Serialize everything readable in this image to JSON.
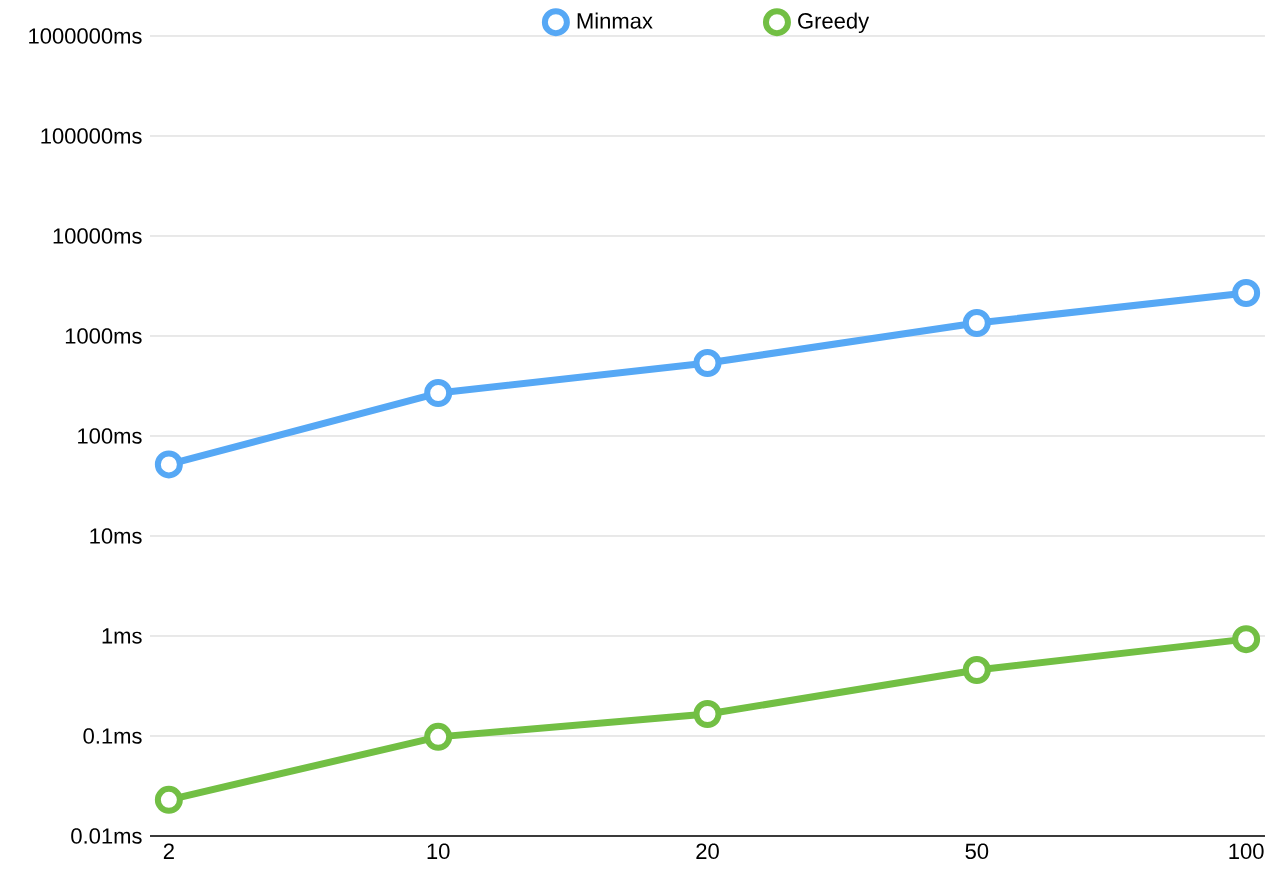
{
  "chart_data": {
    "type": "line",
    "categories": [
      "2",
      "10",
      "20",
      "50",
      "100"
    ],
    "log": "y",
    "ylim": [
      0.01,
      1000000
    ],
    "yticks": [
      {
        "value": 0.01,
        "label": "0.01ms"
      },
      {
        "value": 0.1,
        "label": "0.1ms"
      },
      {
        "value": 1,
        "label": "1ms"
      },
      {
        "value": 10,
        "label": "10ms"
      },
      {
        "value": 100,
        "label": "100ms"
      },
      {
        "value": 1000,
        "label": "1000ms"
      },
      {
        "value": 10000,
        "label": "10000ms"
      },
      {
        "value": 100000,
        "label": "100000ms"
      },
      {
        "value": 1000000,
        "label": "1000000ms"
      }
    ],
    "grid": "y",
    "legend": "top",
    "marker": "circle",
    "line_style": "solid",
    "series": [
      {
        "name": "Minmax",
        "color": "#56a8f5",
        "values": [
          52,
          269,
          537,
          1349,
          2692
        ]
      },
      {
        "name": "Greedy",
        "color": "#72bf44",
        "values": [
          0.023,
          0.098,
          0.166,
          0.457,
          0.93
        ]
      }
    ]
  }
}
